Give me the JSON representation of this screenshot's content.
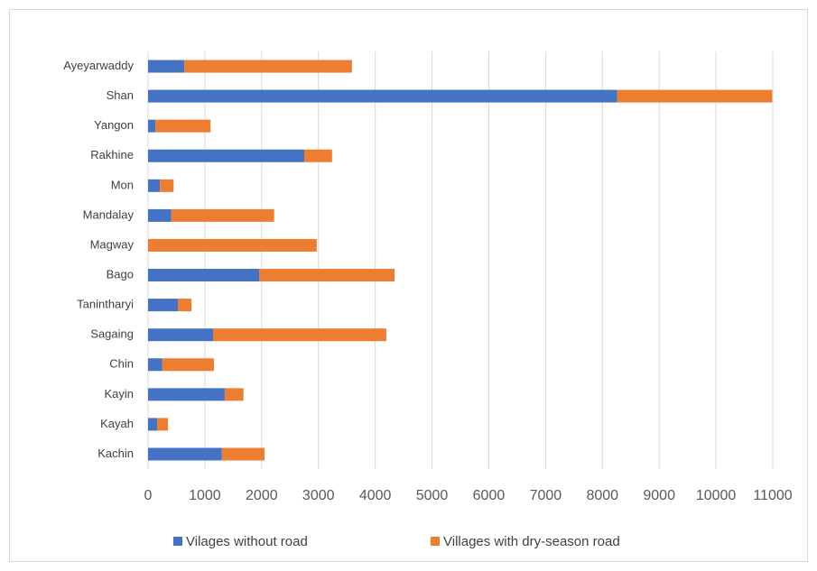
{
  "chart_data": {
    "type": "bar",
    "orientation": "horizontal",
    "stacked": true,
    "categories": [
      "Ayeyarwaddy",
      "Shan",
      "Yangon",
      "Rakhine",
      "Mon",
      "Mandalay",
      "Magway",
      "Bago",
      "Tanintharyi",
      "Sagaing",
      "Chin",
      "Kayin",
      "Kayah",
      "Kachin"
    ],
    "series": [
      {
        "name": "Vilages without road",
        "color": "#4472c4",
        "values": [
          640,
          8260,
          130,
          2750,
          210,
          410,
          0,
          1960,
          525,
          1145,
          250,
          1350,
          160,
          1300
        ]
      },
      {
        "name": "Villages with dry-season road",
        "color": "#ed7d31",
        "values": [
          2950,
          2730,
          970,
          490,
          240,
          1810,
          2970,
          2380,
          240,
          3050,
          910,
          330,
          190,
          750
        ]
      }
    ],
    "xlim": [
      0,
      11000
    ],
    "xticks": [
      0,
      1000,
      2000,
      3000,
      4000,
      5000,
      6000,
      7000,
      8000,
      9000,
      10000,
      11000
    ],
    "grid": true,
    "legend": "bottom"
  }
}
